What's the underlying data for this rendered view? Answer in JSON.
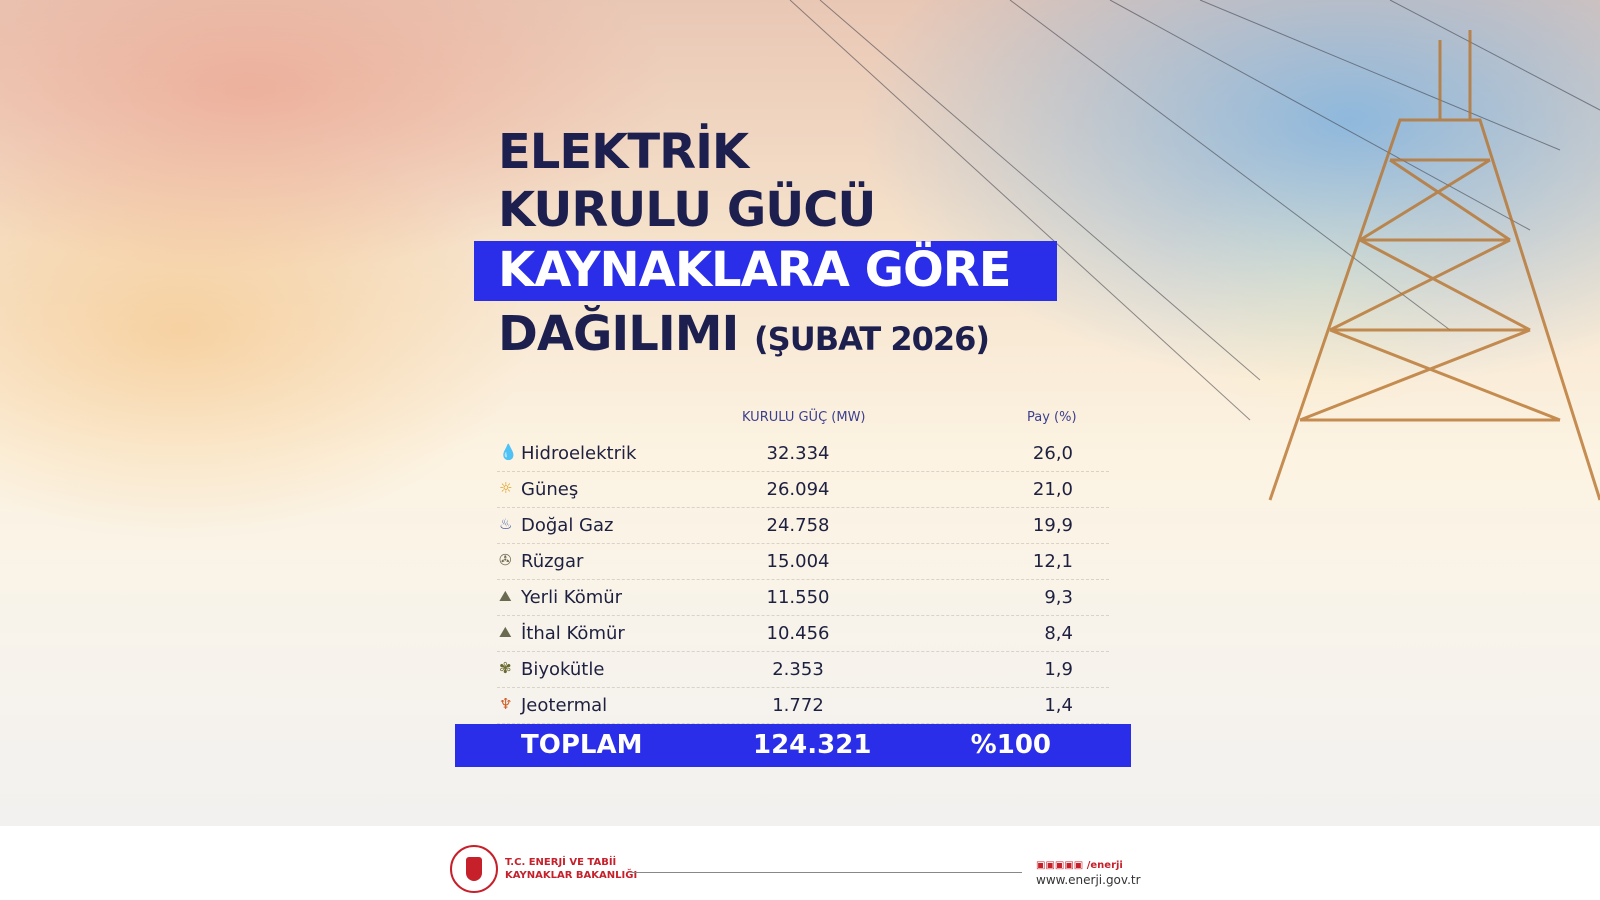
{
  "title": {
    "line1": "ELEKTRİK",
    "line2": "KURULU GÜCÜ",
    "line3": "KAYNAKLARA GÖRE",
    "line4": "DAĞILIMI",
    "period": "(ŞUBAT 2026)"
  },
  "colors": {
    "accent": "#2a2ee8",
    "title": "#1d1f4e",
    "brand": "#c6202b"
  },
  "chart_data": {
    "type": "table",
    "columns": [
      "",
      "KURULU GÜÇ (MW)",
      "Pay (%)"
    ],
    "rows": [
      {
        "icon": "water-drop-icon",
        "name": "Hidroelektrik",
        "mw": "32.334",
        "pct": "26,0"
      },
      {
        "icon": "sun-icon",
        "name": "Güneş",
        "mw": "26.094",
        "pct": "21,0"
      },
      {
        "icon": "flame-icon",
        "name": "Doğal Gaz",
        "mw": "24.758",
        "pct": "19,9"
      },
      {
        "icon": "wind-turbine-icon",
        "name": "Rüzgar",
        "mw": "15.004",
        "pct": "12,1"
      },
      {
        "icon": "coal-icon",
        "name": "Yerli Kömür",
        "mw": "11.550",
        "pct": "9,3"
      },
      {
        "icon": "coal-icon",
        "name": "İthal Kömür",
        "mw": "10.456",
        "pct": "8,4"
      },
      {
        "icon": "plant-icon",
        "name": "Biyokütle",
        "mw": "2.353",
        "pct": "1,9"
      },
      {
        "icon": "geothermal-icon",
        "name": "Jeotermal",
        "mw": "1.772",
        "pct": "1,4"
      }
    ],
    "total": {
      "label": "TOPLAM",
      "mw": "124.321",
      "pct": "%100"
    }
  },
  "footer": {
    "org_line1": "T.C. ENERJİ VE TABİİ",
    "org_line2": "KAYNAKLAR BAKANLIĞI",
    "social_handle": "/enerji",
    "website": "www.enerji.gov.tr"
  }
}
